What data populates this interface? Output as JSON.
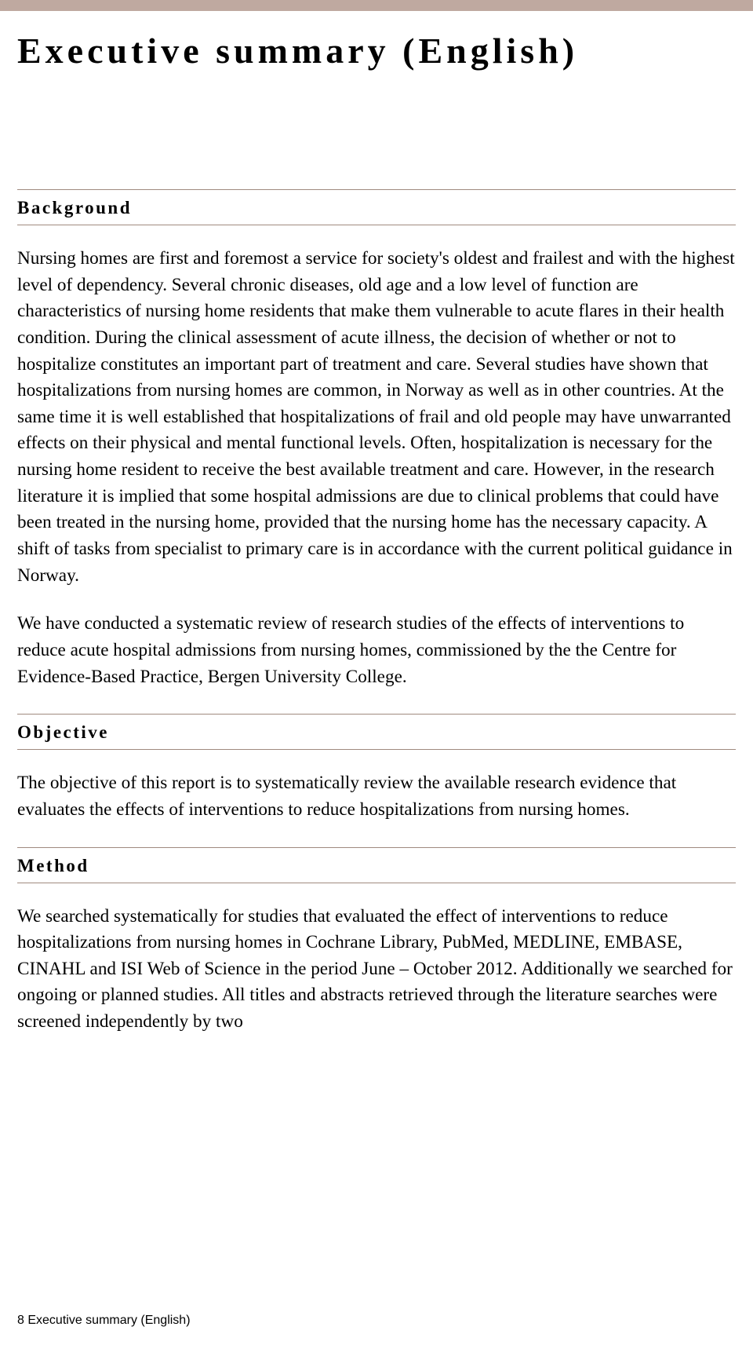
{
  "colors": {
    "top_bar": "#bfa9a0",
    "rule": "#a08a7f",
    "text": "#000000",
    "background": "#ffffff"
  },
  "title": "Executive summary (English)",
  "sections": {
    "background": {
      "heading": "Background",
      "para1": "Nursing homes are first and foremost a service for society's oldest and frailest and with the highest level of dependency. Several chronic diseases, old age and a low level of function are characteristics of nursing home residents that make them vulnerable to acute flares in their health condition. During the clinical assessment of acute illness, the decision of whether or not to hospitalize constitutes an important part of treatment and care. Several studies have shown that hospitalizations from nursing homes are common, in Norway as well as in other countries. At the same time it is well established that hospitalizations of frail and old people may have unwarranted effects on their physical and mental functional levels. Often, hospitalization is necessary for the nursing home resident to receive the best available treatment and care. However, in the research literature it is implied that some hospital admissions are due to clinical problems that could have been treated in the nursing home, provided that the nursing home has the necessary capacity. A shift of tasks from specialist to primary care is in accordance with the current political guidance in Norway.",
      "para2": "We have conducted a systematic review of research studies of the effects of interventions to reduce acute hospital admissions from nursing homes, commissioned by the the Centre for Evidence-Based Practice, Bergen University College."
    },
    "objective": {
      "heading": "Objective",
      "para1": "The objective of this report is to systematically review the available research evidence that evaluates the effects of interventions to reduce hospitalizations from nursing homes."
    },
    "method": {
      "heading": "Method",
      "para1": "We searched systematically for studies that evaluated the effect of interventions to reduce hospitalizations from nursing homes in Cochrane Library, PubMed, MEDLINE, EMBASE, CINAHL and ISI Web of Science in the period June – October 2012. Additionally we searched for ongoing or planned studies. All titles and abstracts retrieved through the literature searches were screened independently by two"
    }
  },
  "footer": {
    "page_number": "8",
    "label": "Executive summary (English)"
  }
}
